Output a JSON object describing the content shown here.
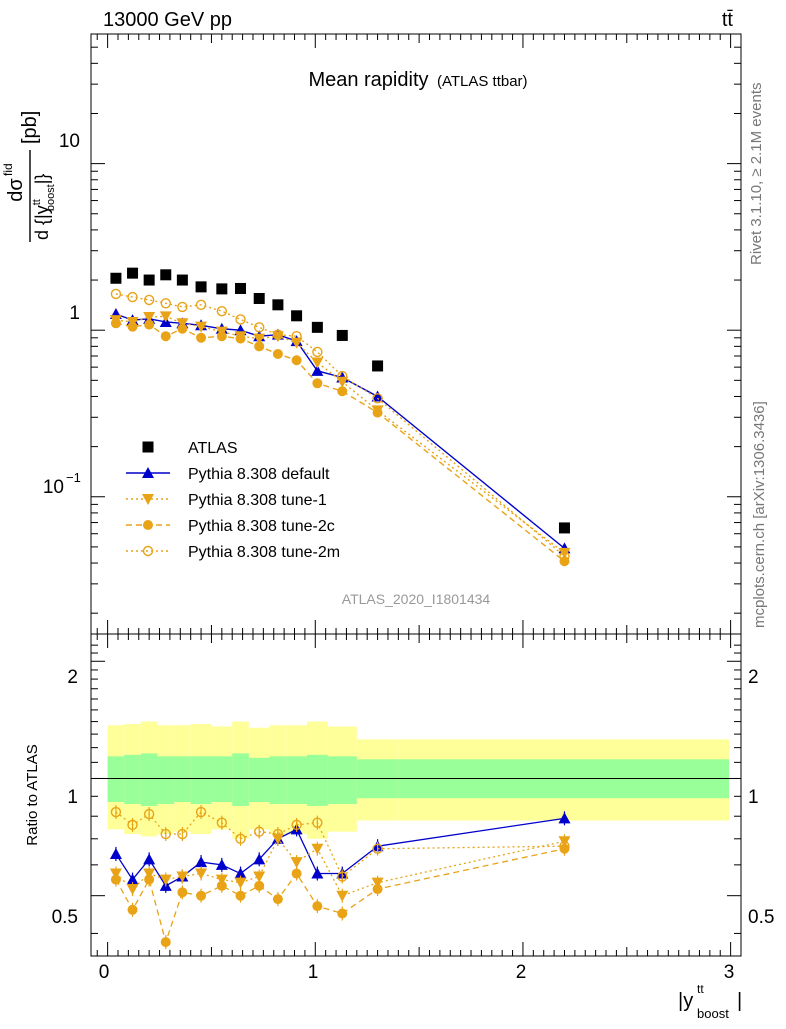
{
  "header": {
    "left": "13000 GeV pp",
    "right": "tt̄"
  },
  "side_labels": {
    "rivet": "Rivet 3.1.10, ≥ 2.1M events",
    "mcplots": "mcplots.cern.ch [arXiv:1306.3436]"
  },
  "watermark": "ATLAS_2020_I1801434",
  "main_title": {
    "text": "Mean rapidity",
    "subtext": "(ATLAS ttbar)"
  },
  "y_axis_label": {
    "prefix": "d",
    "sigma": "σ",
    "sigma_sup": "fid",
    "den": "d {|y",
    "den_sup": "tt",
    "den_sub": "boost",
    "den_end": "|}",
    "unit": "[pb]"
  },
  "ratio_axis_label": "Ratio to ATLAS",
  "x_axis_label": {
    "main": "|y",
    "sup": "tt",
    "sub": "boost",
    "end": "|"
  },
  "top_ticks": [
    "10",
    "1",
    "10",
    "−1"
  ],
  "x_ticks": [
    "0",
    "1",
    "2",
    "3"
  ],
  "ratio_ticks": [
    "2",
    "1",
    "0.5"
  ],
  "colors": {
    "data": "#000000",
    "default": "#0000cc",
    "tune_orange": "#e8a317",
    "band_inner": "#99ff99",
    "band_outer": "#ffff99"
  },
  "chart_data": {
    "type": "scatter",
    "x_bin_edges": [
      0.0,
      0.08,
      0.16,
      0.24,
      0.32,
      0.4,
      0.5,
      0.6,
      0.68,
      0.78,
      0.86,
      0.96,
      1.06,
      1.2,
      1.4,
      3.0
    ],
    "x": [
      0.04,
      0.12,
      0.2,
      0.28,
      0.36,
      0.45,
      0.55,
      0.64,
      0.73,
      0.82,
      0.91,
      1.01,
      1.13,
      1.3,
      2.2
    ],
    "xlim": [
      -0.08,
      3.05
    ],
    "main_ylim": [
      0.015,
      60
    ],
    "main_yscale": "log",
    "ratio_ylim": [
      0.35,
      2.35
    ],
    "ratio_yscale": "log",
    "legend": [
      "ATLAS",
      "Pythia 8.308 default",
      "Pythia 8.308 tune-1",
      "Pythia 8.308 tune-2c",
      "Pythia 8.308 tune-2m"
    ],
    "legend_position": "lower-left",
    "series": [
      {
        "name": "ATLAS",
        "marker": "square",
        "style": "none",
        "values": [
          2.05,
          2.2,
          2.0,
          2.15,
          2.0,
          1.82,
          1.77,
          1.78,
          1.55,
          1.42,
          1.22,
          1.04,
          0.93,
          0.61,
          0.065
        ]
      },
      {
        "name": "Pythia 8.308 default",
        "marker": "triangle-up",
        "style": "solid",
        "values": [
          1.25,
          1.15,
          1.17,
          1.12,
          1.1,
          1.07,
          1.02,
          1.0,
          0.92,
          0.94,
          0.86,
          0.57,
          0.52,
          0.4,
          0.049
        ],
        "ratio": [
          0.64,
          0.55,
          0.62,
          0.53,
          0.56,
          0.61,
          0.6,
          0.57,
          0.62,
          0.7,
          0.74,
          0.57,
          0.57,
          0.67,
          0.79
        ]
      },
      {
        "name": "Pythia 8.308 tune-1",
        "marker": "triangle-down",
        "style": "dotted",
        "values": [
          1.15,
          1.12,
          1.2,
          1.21,
          1.1,
          1.05,
          0.98,
          0.92,
          0.89,
          0.92,
          0.84,
          0.64,
          0.49,
          0.33,
          0.046
        ],
        "ratio": [
          0.57,
          0.52,
          0.57,
          0.55,
          0.56,
          0.57,
          0.55,
          0.54,
          0.56,
          0.7,
          0.61,
          0.66,
          0.5,
          0.54,
          0.69
        ]
      },
      {
        "name": "Pythia 8.308 tune-2c",
        "marker": "circle",
        "style": "dashed",
        "values": [
          1.1,
          1.05,
          1.08,
          0.92,
          1.02,
          0.9,
          0.92,
          0.89,
          0.8,
          0.72,
          0.66,
          0.48,
          0.43,
          0.32,
          0.041
        ],
        "ratio": [
          0.55,
          0.46,
          0.55,
          0.38,
          0.51,
          0.5,
          0.53,
          0.5,
          0.53,
          0.49,
          0.57,
          0.47,
          0.45,
          0.52,
          0.66
        ]
      },
      {
        "name": "Pythia 8.308 tune-2m",
        "marker": "open-circle",
        "style": "dotted",
        "values": [
          1.65,
          1.58,
          1.52,
          1.45,
          1.38,
          1.42,
          1.3,
          1.16,
          1.04,
          0.94,
          0.92,
          0.74,
          0.53,
          0.39,
          0.044
        ],
        "ratio": [
          0.82,
          0.76,
          0.81,
          0.72,
          0.72,
          0.82,
          0.77,
          0.7,
          0.73,
          0.72,
          0.76,
          0.77,
          0.56,
          0.66,
          0.67
        ]
      }
    ],
    "ratio_band_inner": [
      [
        0.87,
        1.14
      ],
      [
        0.86,
        1.15
      ],
      [
        0.85,
        1.16
      ],
      [
        0.86,
        1.14
      ],
      [
        0.87,
        1.14
      ],
      [
        0.86,
        1.14
      ],
      [
        0.87,
        1.14
      ],
      [
        0.85,
        1.16
      ],
      [
        0.87,
        1.13
      ],
      [
        0.86,
        1.14
      ],
      [
        0.86,
        1.14
      ],
      [
        0.85,
        1.15
      ],
      [
        0.86,
        1.14
      ],
      [
        0.89,
        1.12
      ],
      [
        0.89,
        1.12
      ]
    ],
    "ratio_band_outer": [
      [
        0.74,
        1.37
      ],
      [
        0.72,
        1.38
      ],
      [
        0.71,
        1.4
      ],
      [
        0.72,
        1.37
      ],
      [
        0.73,
        1.37
      ],
      [
        0.72,
        1.38
      ],
      [
        0.74,
        1.36
      ],
      [
        0.7,
        1.4
      ],
      [
        0.74,
        1.35
      ],
      [
        0.72,
        1.37
      ],
      [
        0.72,
        1.37
      ],
      [
        0.7,
        1.4
      ],
      [
        0.73,
        1.36
      ],
      [
        0.78,
        1.26
      ],
      [
        0.78,
        1.26
      ]
    ]
  }
}
